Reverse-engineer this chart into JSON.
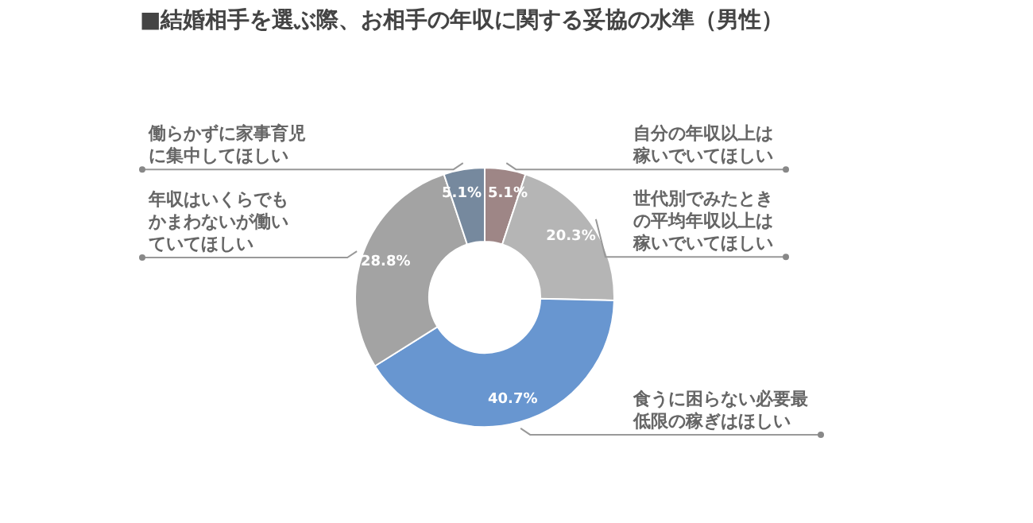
{
  "chart_data": {
    "type": "donut",
    "title": "■結婚相手を選ぶ際、お相手の年収に関する妥協の水準（男性）",
    "categories": [
      "自分の年収以上は稼いでいてほしい",
      "世代別でみたときの平均年収以上は稼いでいてほしい",
      "食うに困らない必要最低限の稼ぎはほしい",
      "年収はいくらでもかまわないが働いていてほしい",
      "働らかずに家事育児に集中してほしい"
    ],
    "values": [
      5.1,
      20.3,
      40.7,
      28.8,
      5.1
    ],
    "value_labels": [
      "5.1%",
      "20.3%",
      "40.7%",
      "28.8%",
      "5.1%"
    ],
    "colors": [
      "#9e8686",
      "#b5b5b5",
      "#6896d0",
      "#a3a3a3",
      "#76899e"
    ],
    "legend": false
  }
}
